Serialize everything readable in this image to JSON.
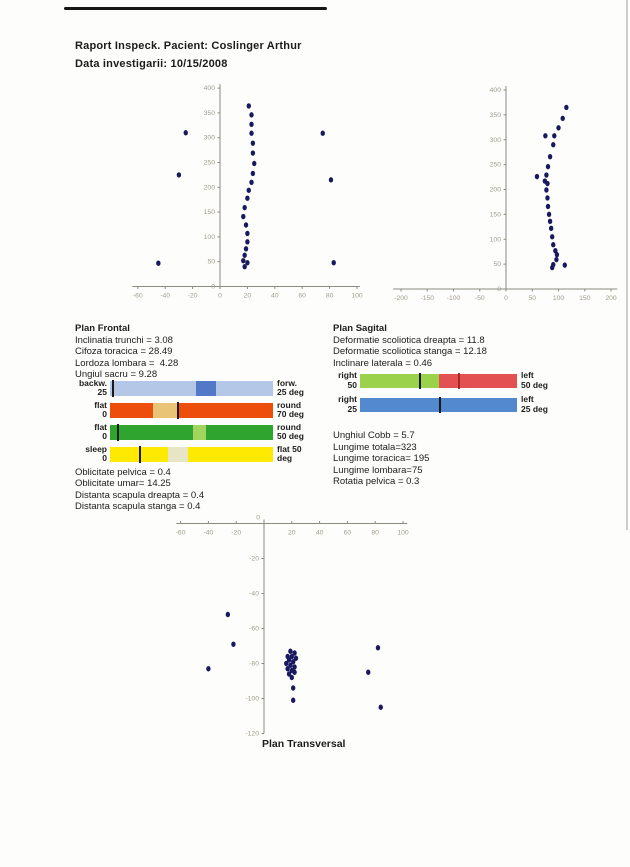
{
  "header": {
    "line1": "Raport Inspeck. Pacient: Coslinger  Arthur",
    "line2": "Data investigarii: 10/15/2008"
  },
  "frontal": {
    "heading": "Plan Frontal",
    "stats_top": [
      "Inclinatia trunchi = 3.08",
      "Cifoza toracica = 28.49",
      "Lordoza lombara =  4.28",
      "Ungiul sacru = 9.28"
    ],
    "bars": [
      {
        "left_top": "backw.",
        "left_bottom": "25",
        "right_top": "forw.",
        "right_bottom": "25 deg",
        "color": "#b5c7e6",
        "segments": [
          {
            "from": 53,
            "to": 65,
            "color": "#5478c8"
          }
        ],
        "markers": [
          {
            "at": 1.6,
            "color": "#1a1a1a"
          }
        ]
      },
      {
        "left_top": "flat",
        "left_bottom": "0",
        "right_top": "round",
        "right_bottom": "70 deg",
        "color": "#ee4e0b",
        "segments": [
          {
            "from": 26.5,
            "to": 41,
            "color": "#e9c476"
          }
        ],
        "markers": [
          {
            "at": 42,
            "color": "#1a1a1a"
          }
        ]
      },
      {
        "left_top": "flat",
        "left_bottom": "0",
        "right_top": "round",
        "right_bottom": "50 deg",
        "color": "#2fa42f",
        "segments": [
          {
            "from": 51,
            "to": 59,
            "color": "#a2d45e"
          }
        ],
        "markers": [
          {
            "at": 4.7,
            "color": "#1a1a1a"
          }
        ]
      },
      {
        "left_top": "sleep",
        "left_bottom": "0",
        "right_top": "flat 50",
        "right_bottom": "deg",
        "color": "#fee903",
        "segments": [
          {
            "from": 35.7,
            "to": 48,
            "color": "#e8e4c6"
          }
        ],
        "markers": [
          {
            "at": 18.4,
            "color": "#1a1a1a"
          }
        ]
      }
    ],
    "stats_bottom": [
      "Oblicitate pelvica = 0.4",
      "Oblicitate umar= 14.25",
      "Distanta scapula dreapta = 0.4",
      "Distanta scapula stanga = 0.4"
    ]
  },
  "sagital": {
    "heading": "Plan Sagital",
    "stats_top": [
      "Deformatie scoliotica dreapta = 11.8",
      "Deformatie scoliotica stanga = 12.18",
      "Inclinare laterala = 0.46"
    ],
    "bars": [
      {
        "left_top": "right",
        "left_bottom": "50",
        "right_top": "left",
        "right_bottom": "50 deg",
        "color": "#9bd24b",
        "segments": [
          {
            "from": 50,
            "to": 100,
            "color": "#e45152"
          }
        ],
        "markers": [
          {
            "at": 38.3,
            "color": "#1a1a1a"
          },
          {
            "at": 62.8,
            "color": "#aa2822"
          }
        ]
      },
      {
        "left_top": "right",
        "left_bottom": "25",
        "right_top": "left",
        "right_bottom": "25 deg",
        "color": "#5289cf",
        "segments": [],
        "markers": [
          {
            "at": 51,
            "color": "#1a1a1a"
          }
        ]
      }
    ],
    "stats_bottom": [
      "Unghiul Cobb = 5.7",
      "Lungime totala=323",
      "Lungime toracica= 195",
      "Lungime lombara=75",
      "Rotatia pelvica = 0.3"
    ]
  },
  "transversal": {
    "heading": "Plan Transversal"
  },
  "colors": {
    "point": "#191960",
    "axis": "#8b8b82",
    "tick_label": "#a19c8d"
  },
  "chart_data": [
    {
      "id": "frontal-scatter",
      "type": "scatter",
      "title": "",
      "xlabel": "",
      "ylabel": "",
      "xlim": [
        -60,
        100
      ],
      "ylim": [
        0,
        400
      ],
      "xticks": [
        -60,
        -40,
        -20,
        0,
        20,
        40,
        60,
        80,
        100
      ],
      "yticks": [
        0,
        50,
        100,
        150,
        200,
        250,
        300,
        350,
        400
      ],
      "grid": false,
      "points": [
        [
          21,
          364
        ],
        [
          23,
          346
        ],
        [
          23,
          327
        ],
        [
          23,
          309
        ],
        [
          24,
          289
        ],
        [
          24,
          269
        ],
        [
          25,
          248
        ],
        [
          24,
          228
        ],
        [
          23,
          210
        ],
        [
          21,
          194
        ],
        [
          20,
          178
        ],
        [
          18,
          159
        ],
        [
          17,
          141
        ],
        [
          19,
          124
        ],
        [
          20,
          107
        ],
        [
          20,
          90
        ],
        [
          19,
          76
        ],
        [
          18,
          63
        ],
        [
          17,
          52
        ],
        [
          20,
          48
        ],
        [
          18,
          40
        ],
        [
          -25,
          310
        ],
        [
          -30,
          225
        ],
        [
          -45,
          47
        ],
        [
          75,
          309
        ],
        [
          81,
          215
        ],
        [
          83,
          48
        ]
      ]
    },
    {
      "id": "sagital-scatter",
      "type": "scatter",
      "title": "",
      "xlabel": "",
      "ylabel": "",
      "xlim": [
        -200,
        200
      ],
      "ylim": [
        0,
        400
      ],
      "xticks": [
        -200,
        -150,
        -100,
        -50,
        0,
        50,
        100,
        150,
        200
      ],
      "yticks": [
        0,
        50,
        100,
        150,
        200,
        250,
        300,
        350,
        400
      ],
      "grid": false,
      "points": [
        [
          115,
          365
        ],
        [
          108,
          343
        ],
        [
          100,
          324
        ],
        [
          92,
          308
        ],
        [
          75,
          308
        ],
        [
          90,
          290
        ],
        [
          84,
          266
        ],
        [
          80,
          246
        ],
        [
          77,
          229
        ],
        [
          59,
          226
        ],
        [
          74,
          217
        ],
        [
          79,
          212
        ],
        [
          77,
          199
        ],
        [
          79,
          183
        ],
        [
          80,
          166
        ],
        [
          82,
          150
        ],
        [
          84,
          136
        ],
        [
          86,
          122
        ],
        [
          88,
          105
        ],
        [
          90,
          89
        ],
        [
          94,
          77
        ],
        [
          97,
          69
        ],
        [
          96,
          59
        ],
        [
          90,
          49
        ],
        [
          112,
          48
        ],
        [
          88,
          43
        ]
      ]
    },
    {
      "id": "transversal-scatter",
      "type": "scatter",
      "title": "Plan Transversal",
      "xlabel": "",
      "ylabel": "",
      "xlim": [
        -60,
        100
      ],
      "ylim": [
        -120,
        0
      ],
      "xticks": [
        -60,
        -40,
        -20,
        0,
        20,
        40,
        60,
        80,
        100
      ],
      "yticks": [
        -20,
        -40,
        -60,
        -80,
        -100,
        -120
      ],
      "grid": false,
      "points": [
        [
          19,
          -73
        ],
        [
          22,
          -74
        ],
        [
          17,
          -76
        ],
        [
          20,
          -76
        ],
        [
          23,
          -77
        ],
        [
          18,
          -78
        ],
        [
          21,
          -79
        ],
        [
          16,
          -80
        ],
        [
          19,
          -81
        ],
        [
          22,
          -82
        ],
        [
          17,
          -83
        ],
        [
          20,
          -84
        ],
        [
          22,
          -85
        ],
        [
          18,
          -86
        ],
        [
          20,
          -88
        ],
        [
          21,
          -94
        ],
        [
          21,
          -101
        ],
        [
          -26,
          -52
        ],
        [
          -22,
          -69
        ],
        [
          -40,
          -83
        ],
        [
          82,
          -71
        ],
        [
          75,
          -85
        ],
        [
          84,
          -105
        ]
      ]
    }
  ]
}
